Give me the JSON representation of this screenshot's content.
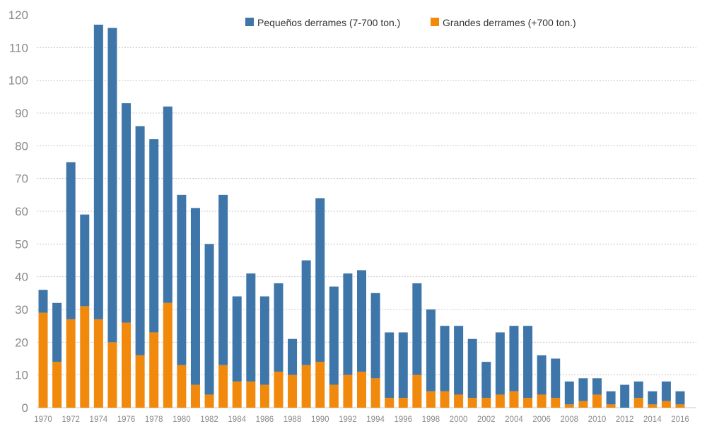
{
  "chart_data": {
    "type": "bar",
    "stacked": true,
    "title": "",
    "xlabel": "",
    "ylabel": "",
    "ylim": [
      0,
      120
    ],
    "yticks": [
      0,
      10,
      20,
      30,
      40,
      50,
      60,
      70,
      80,
      90,
      100,
      110,
      120
    ],
    "grid": true,
    "legend_position": "top-center",
    "categories": [
      1970,
      1971,
      1972,
      1973,
      1974,
      1975,
      1976,
      1977,
      1978,
      1979,
      1980,
      1981,
      1982,
      1983,
      1984,
      1985,
      1986,
      1987,
      1988,
      1989,
      1990,
      1991,
      1992,
      1993,
      1994,
      1995,
      1996,
      1997,
      1998,
      1999,
      2000,
      2001,
      2002,
      2003,
      2004,
      2005,
      2006,
      2007,
      2008,
      2009,
      2010,
      2011,
      2012,
      2013,
      2014,
      2015,
      2016
    ],
    "series": [
      {
        "name": "Grandes derrames (+700 ton.)",
        "color": "#f0890c",
        "values": [
          29,
          14,
          27,
          31,
          27,
          20,
          26,
          16,
          23,
          32,
          13,
          7,
          4,
          13,
          8,
          8,
          7,
          11,
          10,
          13,
          14,
          7,
          10,
          11,
          9,
          3,
          3,
          10,
          5,
          5,
          4,
          3,
          3,
          4,
          5,
          3,
          4,
          3,
          1,
          2,
          4,
          1,
          0,
          3,
          1,
          2,
          1
        ]
      },
      {
        "name": "Pequeños derrames (7-700 ton.)",
        "color": "#3f76a9",
        "values": [
          7,
          18,
          48,
          28,
          90,
          96,
          67,
          70,
          59,
          60,
          52,
          54,
          46,
          52,
          26,
          33,
          27,
          27,
          11,
          32,
          50,
          30,
          31,
          31,
          26,
          20,
          20,
          28,
          25,
          20,
          21,
          18,
          11,
          19,
          20,
          22,
          12,
          12,
          7,
          7,
          5,
          4,
          7,
          5,
          4,
          6,
          4
        ]
      }
    ]
  }
}
